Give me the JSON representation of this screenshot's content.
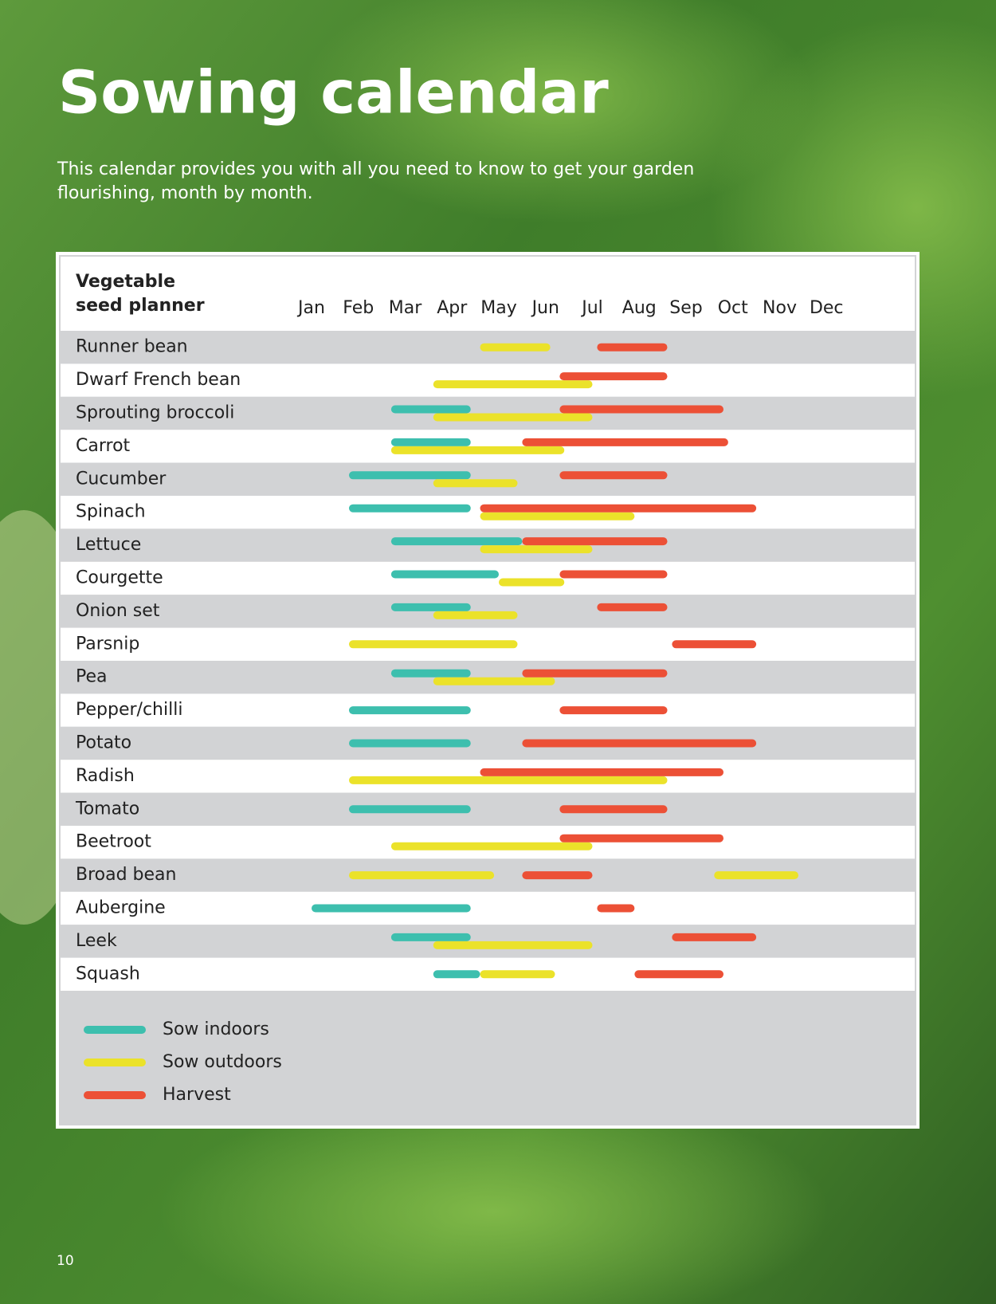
{
  "chart_data": {
    "type": "gantt",
    "title": "Sowing calendar",
    "subtitle": [
      "This calendar provides you with all you need to know to get your garden",
      "flourishing, month by month."
    ],
    "table_header": [
      "Vegetable",
      "seed planner"
    ],
    "page_number": "10",
    "categories": [
      "Jan",
      "Feb",
      "Mar",
      "Apr",
      "May",
      "Jun",
      "Jul",
      "Aug",
      "Sep",
      "Oct",
      "Nov",
      "Dec"
    ],
    "series": [
      {
        "name": "Sow indoors",
        "color": "#3dbfae"
      },
      {
        "name": "Sow outdoors",
        "color": "#ebe22a"
      },
      {
        "name": "Harvest",
        "color": "#ec5036"
      }
    ],
    "rows": [
      {
        "name": "Runner bean",
        "bars": [
          {
            "series": 1,
            "start": 4.6,
            "end": 6.1
          },
          {
            "series": 2,
            "start": 7.1,
            "end": 8.6
          }
        ]
      },
      {
        "name": "Dwarf French bean",
        "bars": [
          {
            "series": 1,
            "start": 3.6,
            "end": 7.0
          },
          {
            "series": 2,
            "start": 6.3,
            "end": 8.6
          }
        ]
      },
      {
        "name": "Sprouting broccoli",
        "bars": [
          {
            "series": 0,
            "start": 2.7,
            "end": 4.4
          },
          {
            "series": 1,
            "start": 3.6,
            "end": 7.0
          },
          {
            "series": 2,
            "start": 6.3,
            "end": 9.8
          }
        ]
      },
      {
        "name": "Carrot",
        "bars": [
          {
            "series": 0,
            "start": 2.7,
            "end": 4.4
          },
          {
            "series": 1,
            "start": 2.7,
            "end": 6.4
          },
          {
            "series": 2,
            "start": 5.5,
            "end": 9.9
          }
        ]
      },
      {
        "name": "Cucumber",
        "bars": [
          {
            "series": 0,
            "start": 1.8,
            "end": 4.4
          },
          {
            "series": 1,
            "start": 3.6,
            "end": 5.4
          },
          {
            "series": 2,
            "start": 6.3,
            "end": 8.6
          }
        ]
      },
      {
        "name": "Spinach",
        "bars": [
          {
            "series": 0,
            "start": 1.8,
            "end": 4.4
          },
          {
            "series": 1,
            "start": 4.6,
            "end": 7.9
          },
          {
            "series": 2,
            "start": 4.6,
            "end": 10.5
          }
        ]
      },
      {
        "name": "Lettuce",
        "bars": [
          {
            "series": 0,
            "start": 2.7,
            "end": 5.5
          },
          {
            "series": 1,
            "start": 4.6,
            "end": 7.0
          },
          {
            "series": 2,
            "start": 5.5,
            "end": 8.6
          }
        ]
      },
      {
        "name": "Courgette",
        "bars": [
          {
            "series": 0,
            "start": 2.7,
            "end": 5.0
          },
          {
            "series": 1,
            "start": 5.0,
            "end": 6.4
          },
          {
            "series": 2,
            "start": 6.3,
            "end": 8.6
          }
        ]
      },
      {
        "name": "Onion set",
        "bars": [
          {
            "series": 0,
            "start": 2.7,
            "end": 4.4
          },
          {
            "series": 1,
            "start": 3.6,
            "end": 5.4
          },
          {
            "series": 2,
            "start": 7.1,
            "end": 8.6
          }
        ]
      },
      {
        "name": "Parsnip",
        "bars": [
          {
            "series": 1,
            "start": 1.8,
            "end": 5.4
          },
          {
            "series": 2,
            "start": 8.7,
            "end": 10.5
          }
        ]
      },
      {
        "name": "Pea",
        "bars": [
          {
            "series": 0,
            "start": 2.7,
            "end": 4.4
          },
          {
            "series": 1,
            "start": 3.6,
            "end": 6.2
          },
          {
            "series": 2,
            "start": 5.5,
            "end": 8.6
          }
        ]
      },
      {
        "name": "Pepper/chilli",
        "bars": [
          {
            "series": 0,
            "start": 1.8,
            "end": 4.4
          },
          {
            "series": 2,
            "start": 6.3,
            "end": 8.6
          }
        ]
      },
      {
        "name": "Potato",
        "bars": [
          {
            "series": 0,
            "start": 1.8,
            "end": 4.4
          },
          {
            "series": 2,
            "start": 5.5,
            "end": 10.5
          }
        ]
      },
      {
        "name": "Radish",
        "bars": [
          {
            "series": 1,
            "start": 1.8,
            "end": 8.6
          },
          {
            "series": 2,
            "start": 4.6,
            "end": 9.8
          }
        ]
      },
      {
        "name": "Tomato",
        "bars": [
          {
            "series": 0,
            "start": 1.8,
            "end": 4.4
          },
          {
            "series": 2,
            "start": 6.3,
            "end": 8.6
          }
        ]
      },
      {
        "name": "Beetroot",
        "bars": [
          {
            "series": 1,
            "start": 2.7,
            "end": 7.0
          },
          {
            "series": 2,
            "start": 6.3,
            "end": 9.8
          }
        ]
      },
      {
        "name": "Broad bean",
        "bars": [
          {
            "series": 1,
            "start": 1.8,
            "end": 4.9
          },
          {
            "series": 2,
            "start": 5.5,
            "end": 7.0
          },
          {
            "series": 1,
            "start": 9.6,
            "end": 11.4
          }
        ]
      },
      {
        "name": "Aubergine",
        "bars": [
          {
            "series": 0,
            "start": 1.0,
            "end": 4.4
          },
          {
            "series": 2,
            "start": 7.1,
            "end": 7.9
          }
        ]
      },
      {
        "name": "Leek",
        "bars": [
          {
            "series": 0,
            "start": 2.7,
            "end": 4.4
          },
          {
            "series": 1,
            "start": 3.6,
            "end": 7.0
          },
          {
            "series": 2,
            "start": 8.7,
            "end": 10.5
          }
        ]
      },
      {
        "name": "Squash",
        "bars": [
          {
            "series": 0,
            "start": 3.6,
            "end": 4.6
          },
          {
            "series": 1,
            "start": 4.6,
            "end": 6.2
          },
          {
            "series": 2,
            "start": 7.9,
            "end": 9.8
          }
        ]
      }
    ]
  }
}
